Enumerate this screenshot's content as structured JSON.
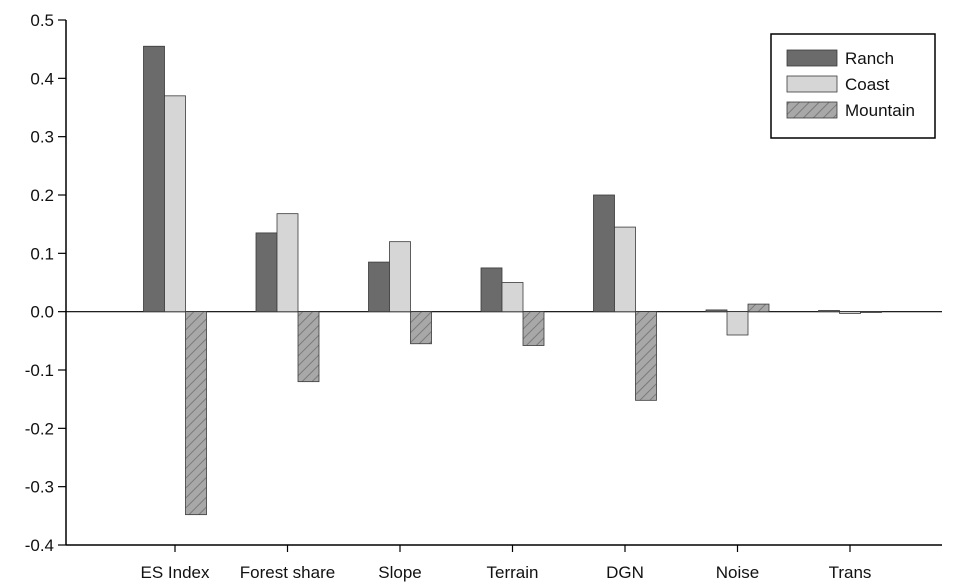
{
  "chart_data": {
    "type": "bar",
    "title": "",
    "xlabel": "",
    "ylabel": "",
    "categories": [
      "ES Index",
      "Forest share",
      "Slope",
      "Terrain",
      "DGN",
      "Noise",
      "Trans"
    ],
    "series": [
      {
        "name": "Ranch",
        "values": [
          0.455,
          0.135,
          0.085,
          0.075,
          0.2,
          0.003,
          0.002
        ],
        "color": "#6b6b6b",
        "pattern": "solid"
      },
      {
        "name": "Coast",
        "values": [
          0.37,
          0.168,
          0.12,
          0.05,
          0.145,
          -0.04,
          -0.003
        ],
        "color": "#d6d6d6",
        "pattern": "solid"
      },
      {
        "name": "Mountain",
        "values": [
          -0.348,
          -0.12,
          -0.055,
          -0.058,
          -0.152,
          0.013,
          0.0
        ],
        "color": "#9e9e9e",
        "pattern": "hatched"
      }
    ],
    "ylim": [
      -0.4,
      0.5
    ],
    "yticks": [
      "-0.4",
      "-0.3",
      "-0.2",
      "-0.1",
      "0.0",
      "0.1",
      "0.2",
      "0.3",
      "0.4",
      "0.5"
    ],
    "grid": false,
    "legend_position": "top-right"
  }
}
